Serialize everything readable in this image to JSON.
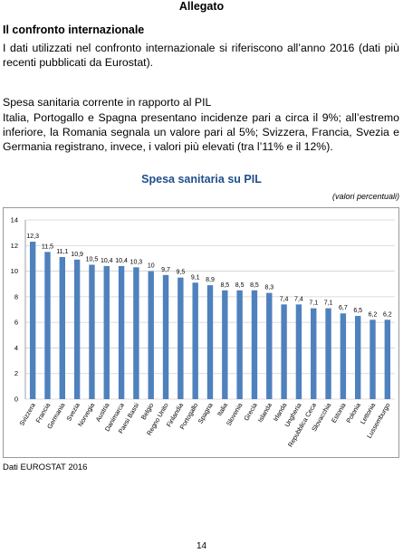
{
  "header": {
    "title": "Allegato"
  },
  "section": {
    "heading": "Il confronto internazionale",
    "paragraph": "I dati utilizzati nel confronto internazionale si riferiscono all’anno 2016 (dati più recenti pubblicati da Eurostat)."
  },
  "subsection": {
    "heading": "Spesa sanitaria corrente in rapporto al PIL",
    "paragraph": "Italia, Portogallo e Spagna presentano incidenze pari a circa il 9%; all’estremo inferiore, la Romania segnala un valore pari al 5%; Svizzera, Francia, Svezia e Germania registrano, invece, i valori più elevati (tra l’11% e il 12%)."
  },
  "chart_data": {
    "type": "bar",
    "title": "Spesa sanitaria su PIL",
    "subtitle": "(valori percentuali)",
    "categories": [
      "Svizzera",
      "Francia",
      "Germania",
      "Svezia",
      "Norvegia",
      "Austria",
      "Danimarca",
      "Paesi Bassi",
      "Belgio",
      "Regno Unito",
      "Finlandia",
      "Portogallo",
      "Spagna",
      "Italia",
      "Slovenia",
      "Grecia",
      "Islanda",
      "Irlanda",
      "Ungheria",
      "Repubblica Ceca",
      "Slovacchia",
      "Estonia",
      "Polonia",
      "Lettonia",
      "Lussemburgo"
    ],
    "values": [
      12.3,
      11.5,
      11.1,
      10.9,
      10.5,
      10.4,
      10.4,
      10.3,
      10,
      9.7,
      9.5,
      9.1,
      8.9,
      8.5,
      8.5,
      8.5,
      8.3,
      7.4,
      7.4,
      7.1,
      7.1,
      6.7,
      6.5,
      6.2,
      6.2
    ],
    "value_labels": [
      "12,3",
      "11,5",
      "11,1",
      "10,9",
      "10,5",
      "10,4",
      "10,4",
      "10,3",
      "10",
      "9,7",
      "9,5",
      "9,1",
      "8,9",
      "8,5",
      "8,5",
      "8,5",
      "8,3",
      "7,4",
      "7,4",
      "7,1",
      "7,1",
      "6,7",
      "6,5",
      "6,2",
      "6,2"
    ],
    "color": "#4f81bd",
    "ylim": [
      0,
      14
    ],
    "yticks": [
      0,
      2,
      4,
      6,
      8,
      10,
      12,
      14
    ],
    "grid": true
  },
  "source": "Dati EUROSTAT 2016",
  "page_number": "14"
}
